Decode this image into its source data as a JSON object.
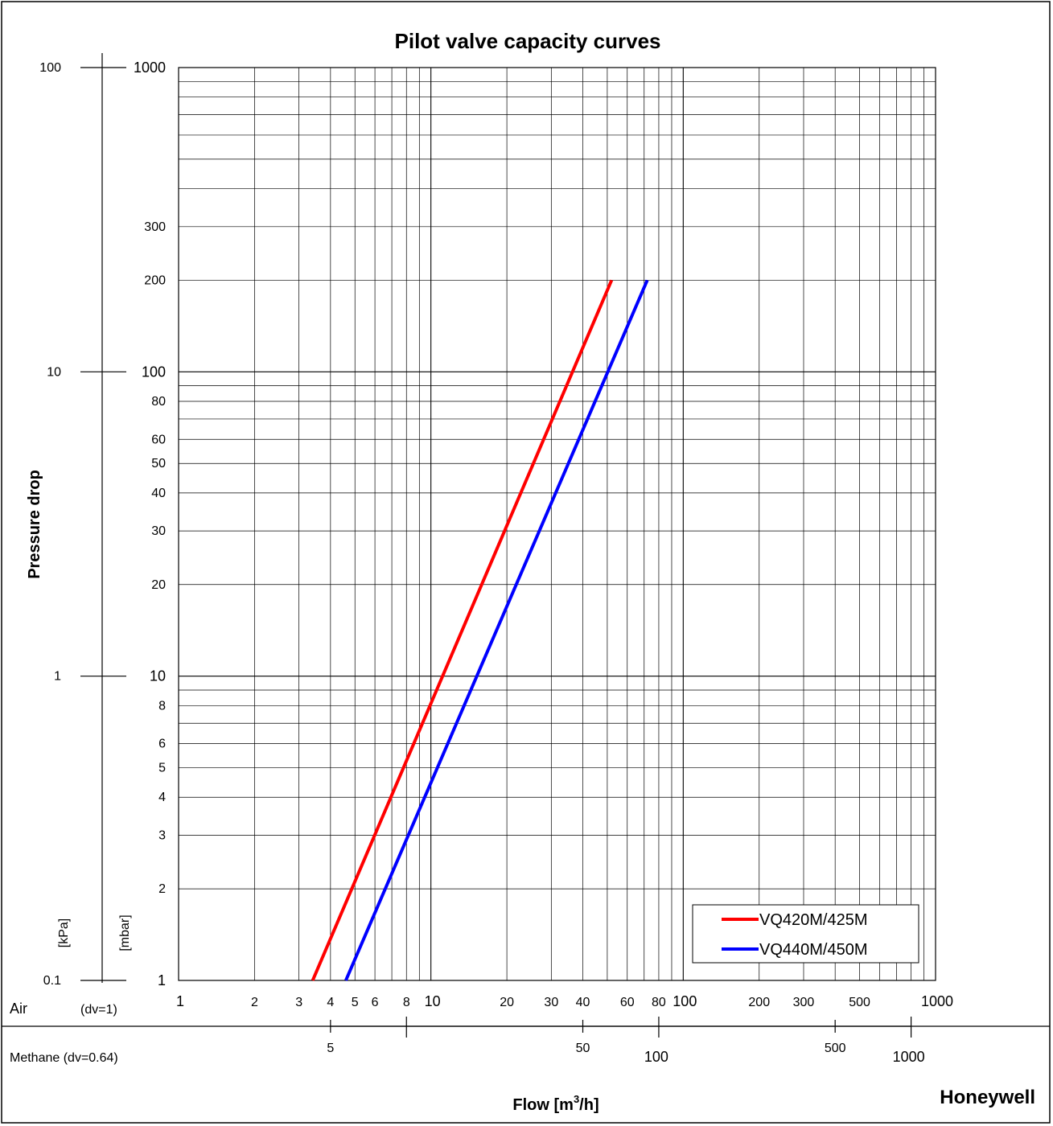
{
  "chart_data": {
    "type": "line",
    "title": "Pilot valve capacity curves",
    "xlabel": "Flow [m³/h]",
    "xlabel_main": "Flow [m",
    "xlabel_sup": "3",
    "xlabel_end": "/h]",
    "ylabel": "Pressure drop",
    "x_scale": "log",
    "y_scale": "log",
    "xlim": [
      1,
      1000
    ],
    "ylim": [
      1,
      1000
    ],
    "y_unit_mbar": "[mbar]",
    "y_unit_kpa": "[kPa]",
    "y_ticks_mbar": [
      "1000",
      "300",
      "200",
      "100",
      "80",
      "60",
      "50",
      "40",
      "30",
      "20",
      "10",
      "8",
      "6",
      "5",
      "4",
      "3",
      "2",
      "1"
    ],
    "y_ticks_kpa": [
      "100",
      "10",
      "1",
      "0.1"
    ],
    "x_scale_air": {
      "label": "Air",
      "density": "(dv=1)",
      "ticks": [
        "1",
        "2",
        "3",
        "4",
        "5",
        "6",
        "8",
        "10",
        "20",
        "30",
        "40",
        "60",
        "80",
        "100",
        "200",
        "300",
        "500",
        "1000"
      ]
    },
    "x_scale_methane": {
      "label": "Methane (dv=0.64)",
      "ticks": [
        "5",
        "50",
        "100",
        "500",
        "1000"
      ]
    },
    "series": [
      {
        "name": "VQ420M/425M",
        "color": "#ff0000",
        "x": [
          3.4,
          52
        ],
        "y": [
          1,
          200
        ]
      },
      {
        "name": "VQ440M/450M",
        "color": "#0000ff",
        "x": [
          4.6,
          72
        ],
        "y": [
          1,
          200
        ]
      }
    ],
    "grid": true,
    "legend_position": "bottom-right"
  },
  "brand": "Honeywell",
  "brand_color": "#e3001b"
}
